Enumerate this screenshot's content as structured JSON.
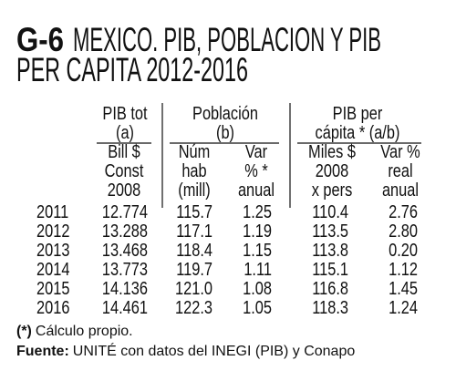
{
  "header": {
    "code": "G-6",
    "title_lines": [
      "MEXICO. PIB, POBLACION Y PIB",
      "PER CAPITA 2012-2016"
    ]
  },
  "table": {
    "groups": [
      {
        "lines": [
          "PIB tot",
          "(a)"
        ]
      },
      {
        "lines": [
          "Población",
          "(b)"
        ]
      },
      {
        "lines": [
          "PIB per",
          "cápita * (a/b)"
        ]
      }
    ],
    "columns": [
      [
        "Bill $",
        "Const",
        "2008"
      ],
      [
        "Núm",
        "hab",
        "(mill)"
      ],
      [
        "Var",
        "% *",
        "anual"
      ],
      [
        "Miles $",
        "2008",
        "x pers"
      ],
      [
        "Var %",
        "real",
        "anual"
      ]
    ],
    "rows": [
      [
        "2011",
        "12.774",
        "115.7",
        "1.25",
        "110.4",
        "2.76"
      ],
      [
        "2012",
        "13.288",
        "117.1",
        "1.19",
        "113.5",
        "2.80"
      ],
      [
        "2013",
        "13.468",
        "118.4",
        "1.15",
        "113.8",
        "0.20"
      ],
      [
        "2014",
        "13.773",
        "119.7",
        "1.11",
        "115.1",
        "1.12"
      ],
      [
        "2015",
        "14.136",
        "121.0",
        "1.08",
        "116.8",
        "1.45"
      ],
      [
        "2016",
        "14.461",
        "122.3",
        "1.05",
        "118.3",
        "1.24"
      ]
    ]
  },
  "notes": [
    {
      "label": "(*)",
      "text": "Cálculo propio."
    },
    {
      "label": "Fuente:",
      "text": "UNITÉ con datos del INEGI (PIB) y Conapo"
    }
  ]
}
